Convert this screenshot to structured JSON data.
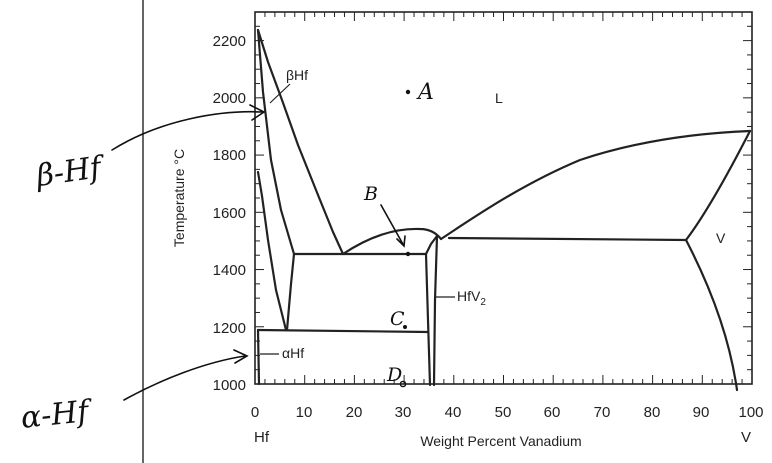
{
  "diagram": {
    "x_axis": {
      "title": "Weight Percent Vanadium",
      "ticks": [
        "0",
        "10",
        "20",
        "30",
        "40",
        "50",
        "60",
        "70",
        "80",
        "90",
        "100"
      ],
      "left_end_label": "Hf",
      "right_end_label": "V"
    },
    "y_axis": {
      "title": "Temperature °C",
      "ticks": [
        "1000",
        "1200",
        "1400",
        "1600",
        "1800",
        "2000",
        "2200"
      ]
    },
    "phase_labels": {
      "liquid": "L",
      "beta_hf": "βHf",
      "vanadium": "V",
      "alpha_hf": "αHf",
      "hfv2_prefix": "HfV",
      "hfv2_sub": "2"
    },
    "handwritten": {
      "point_a": "A",
      "point_b": "B",
      "point_c": "C",
      "point_d": "D",
      "beta_note": "β-Hf",
      "alpha_note": "α-Hf"
    }
  }
}
